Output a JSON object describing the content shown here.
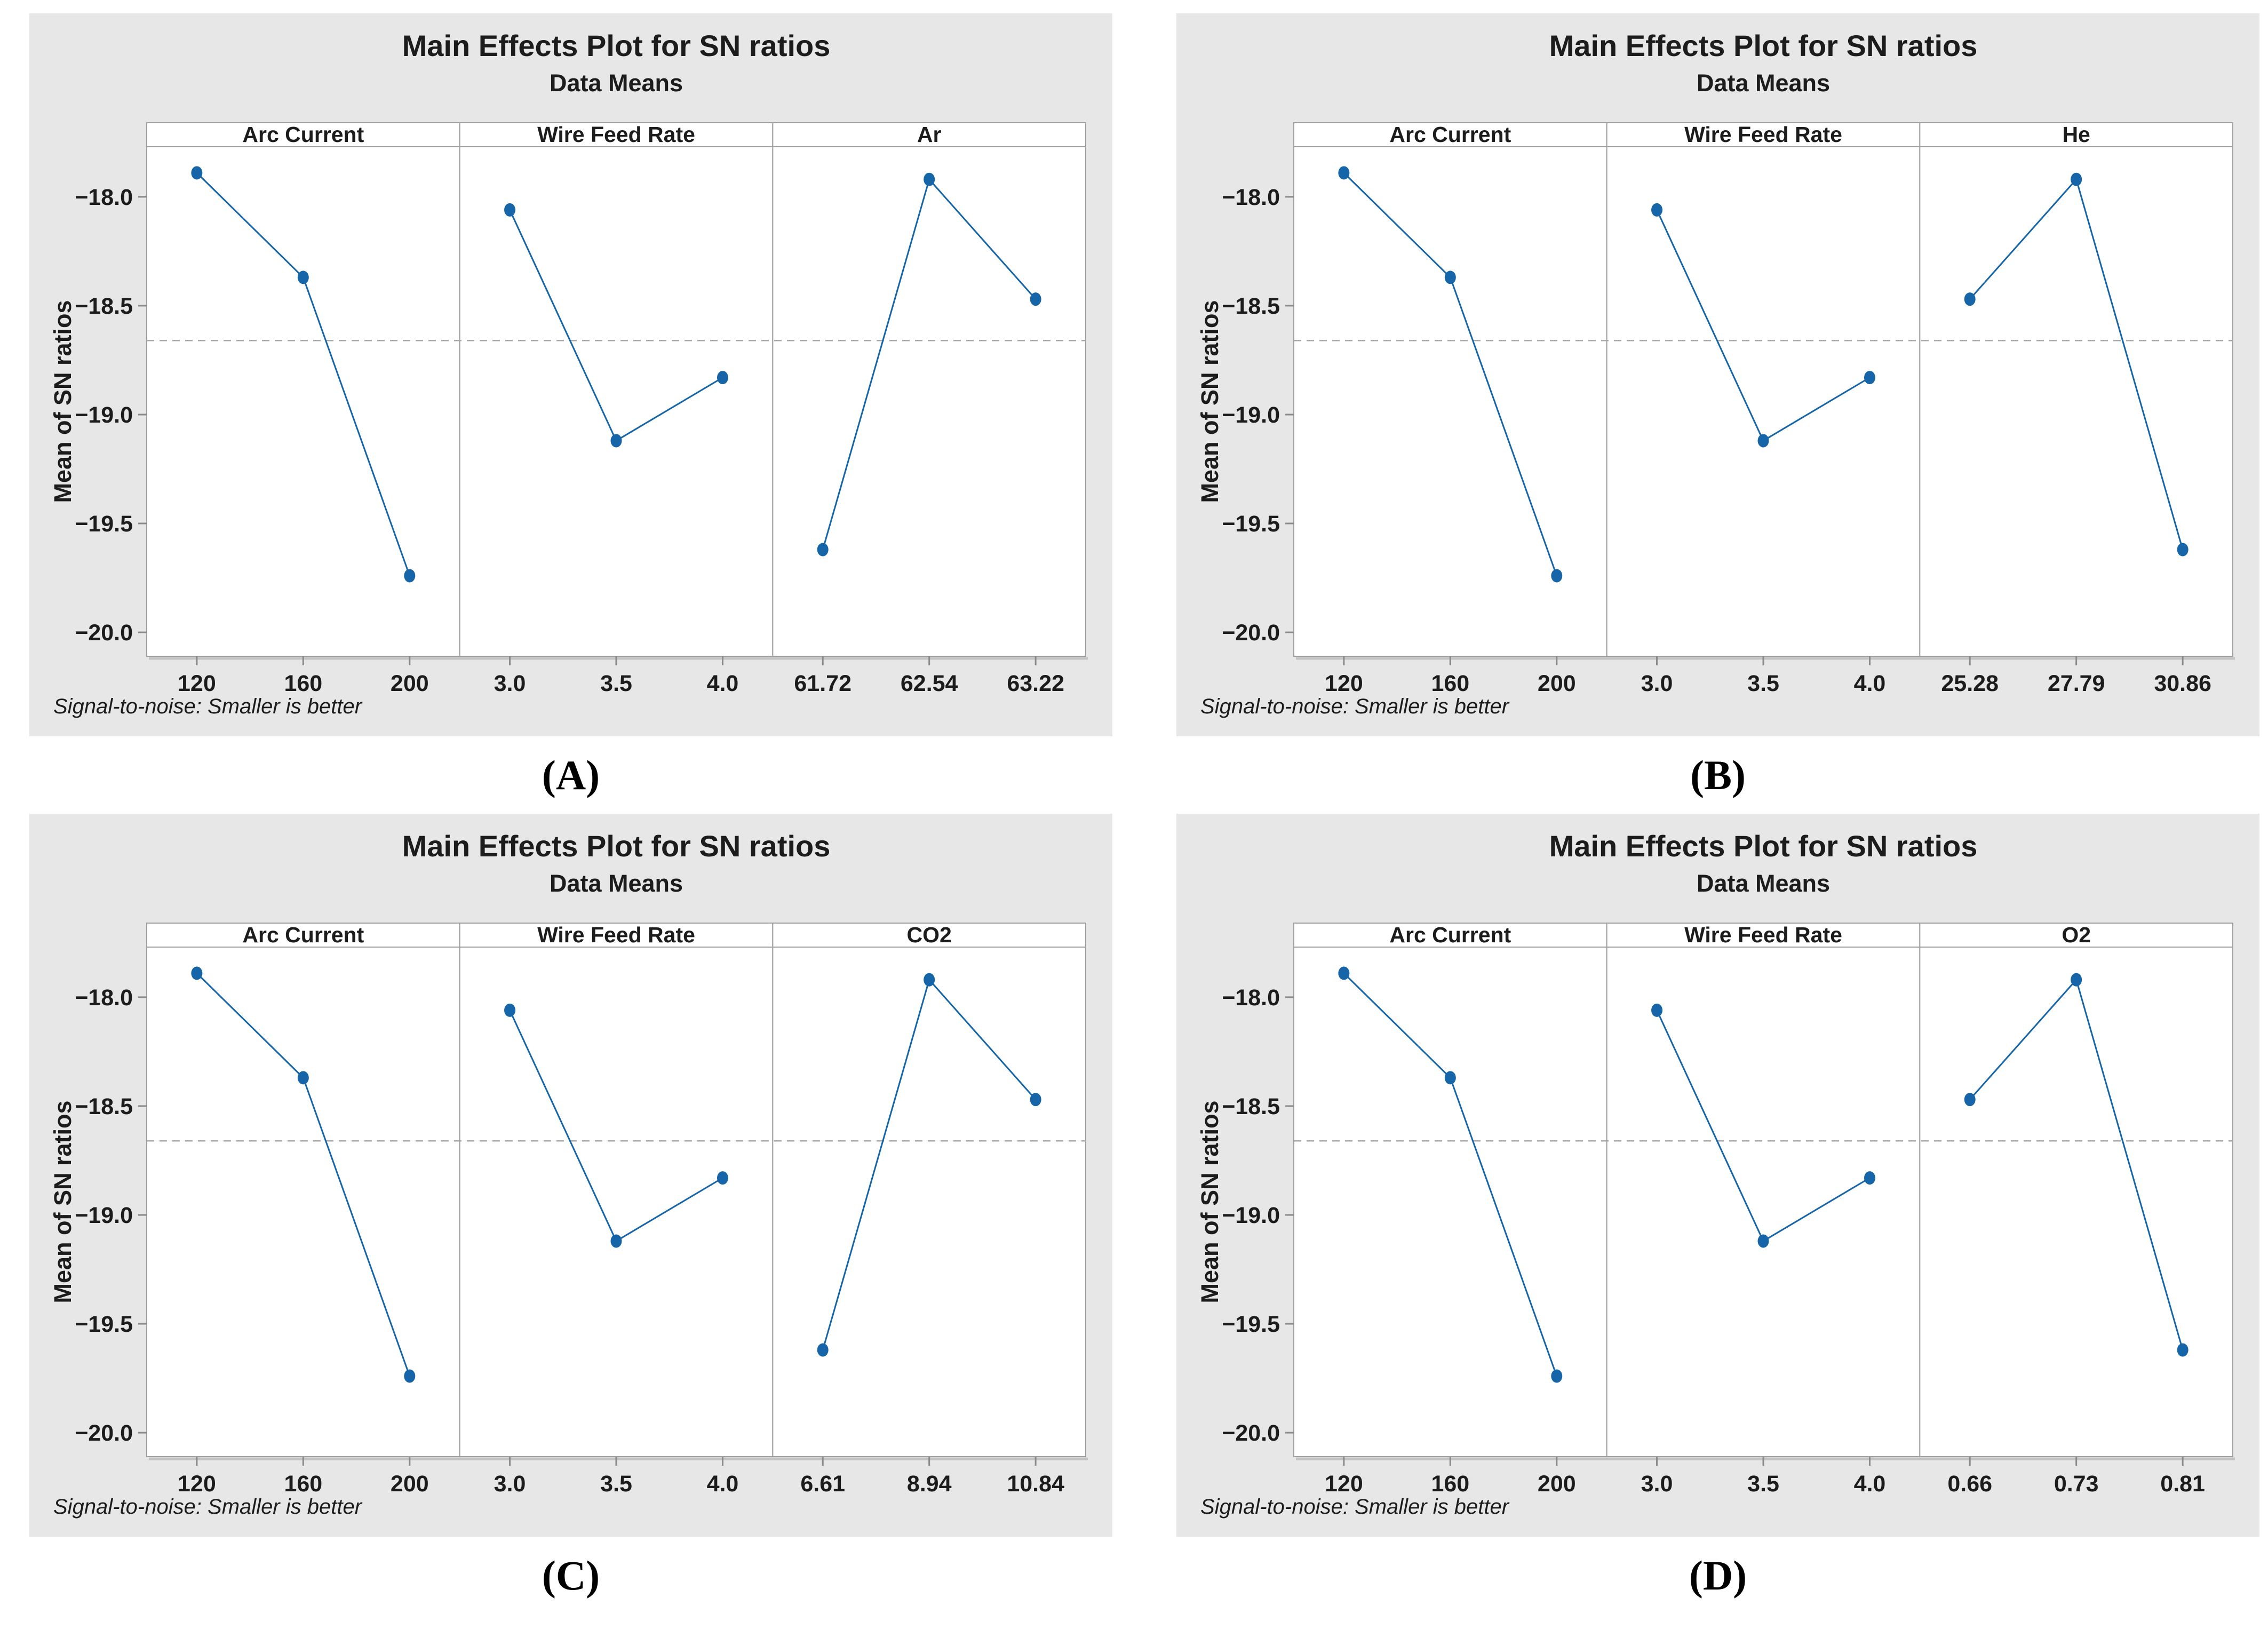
{
  "figure": {
    "description": "Four Minitab main-effects plots for SN ratios, arranged in a 2x2 grid with captions",
    "background_color": "#ffffff"
  },
  "style": {
    "card_background": "#e7e7e7",
    "panel_background": "#ffffff",
    "panel_border": "#a0a0a0",
    "axis_tick_color": "#8a8a8a",
    "shadow_color": "#c4c4c4",
    "text_color": "#1c1c1c",
    "series_color": "#1565a8",
    "reference_line_color": "#a9a9a9"
  },
  "chart_data": [
    {
      "id": "A",
      "type": "line",
      "caption": "(A)",
      "title": "Main Effects Plot for SN ratios",
      "subtitle": "Data Means",
      "ylabel": "Mean of SN ratios",
      "footnote": "Signal-to-noise: Smaller is better",
      "legend": "none",
      "grid": false,
      "ylim": [
        -20.11,
        -17.77
      ],
      "ytick_values": [
        -18.0,
        -18.5,
        -19.0,
        -19.5,
        -20.0
      ],
      "ytick_labels": [
        "−18.0",
        "−18.5",
        "−19.0",
        "−19.5",
        "−20.0"
      ],
      "reference_line_value": -18.66,
      "panels": [
        {
          "factor": "Arc Current",
          "levels": [
            "120",
            "160",
            "200"
          ],
          "means": [
            -17.89,
            -18.37,
            -19.74
          ]
        },
        {
          "factor": "Wire Feed Rate",
          "levels": [
            "3.0",
            "3.5",
            "4.0"
          ],
          "means": [
            -18.06,
            -19.12,
            -18.83
          ]
        },
        {
          "factor": "Ar",
          "levels": [
            "61.72",
            "62.54",
            "63.22"
          ],
          "means": [
            -19.62,
            -17.92,
            -18.47
          ]
        }
      ]
    },
    {
      "id": "B",
      "type": "line",
      "caption": "(B)",
      "title": "Main Effects Plot for SN ratios",
      "subtitle": "Data Means",
      "ylabel": "Mean of SN ratios",
      "footnote": "Signal-to-noise: Smaller is better",
      "legend": "none",
      "grid": false,
      "ylim": [
        -20.11,
        -17.77
      ],
      "ytick_values": [
        -18.0,
        -18.5,
        -19.0,
        -19.5,
        -20.0
      ],
      "ytick_labels": [
        "−18.0",
        "−18.5",
        "−19.0",
        "−19.5",
        "−20.0"
      ],
      "reference_line_value": -18.66,
      "panels": [
        {
          "factor": "Arc Current",
          "levels": [
            "120",
            "160",
            "200"
          ],
          "means": [
            -17.89,
            -18.37,
            -19.74
          ]
        },
        {
          "factor": "Wire Feed Rate",
          "levels": [
            "3.0",
            "3.5",
            "4.0"
          ],
          "means": [
            -18.06,
            -19.12,
            -18.83
          ]
        },
        {
          "factor": "He",
          "levels": [
            "25.28",
            "27.79",
            "30.86"
          ],
          "means": [
            -18.47,
            -17.92,
            -19.62
          ]
        }
      ]
    },
    {
      "id": "C",
      "type": "line",
      "caption": "(C)",
      "title": "Main Effects Plot for SN ratios",
      "subtitle": "Data Means",
      "ylabel": "Mean of SN ratios",
      "footnote": "Signal-to-noise: Smaller is better",
      "legend": "none",
      "grid": false,
      "ylim": [
        -20.11,
        -17.77
      ],
      "ytick_values": [
        -18.0,
        -18.5,
        -19.0,
        -19.5,
        -20.0
      ],
      "ytick_labels": [
        "−18.0",
        "−18.5",
        "−19.0",
        "−19.5",
        "−20.0"
      ],
      "reference_line_value": -18.66,
      "panels": [
        {
          "factor": "Arc Current",
          "levels": [
            "120",
            "160",
            "200"
          ],
          "means": [
            -17.89,
            -18.37,
            -19.74
          ]
        },
        {
          "factor": "Wire Feed Rate",
          "levels": [
            "3.0",
            "3.5",
            "4.0"
          ],
          "means": [
            -18.06,
            -19.12,
            -18.83
          ]
        },
        {
          "factor": "CO2",
          "levels": [
            "6.61",
            "8.94",
            "10.84"
          ],
          "means": [
            -19.62,
            -17.92,
            -18.47
          ]
        }
      ]
    },
    {
      "id": "D",
      "type": "line",
      "caption": "(D)",
      "title": "Main Effects Plot for SN ratios",
      "subtitle": "Data Means",
      "ylabel": "Mean of SN ratios",
      "footnote": "Signal-to-noise: Smaller is better",
      "legend": "none",
      "grid": false,
      "ylim": [
        -20.11,
        -17.77
      ],
      "ytick_values": [
        -18.0,
        -18.5,
        -19.0,
        -19.5,
        -20.0
      ],
      "ytick_labels": [
        "−18.0",
        "−18.5",
        "−19.0",
        "−19.5",
        "−20.0"
      ],
      "reference_line_value": -18.66,
      "panels": [
        {
          "factor": "Arc Current",
          "levels": [
            "120",
            "160",
            "200"
          ],
          "means": [
            -17.89,
            -18.37,
            -19.74
          ]
        },
        {
          "factor": "Wire Feed Rate",
          "levels": [
            "3.0",
            "3.5",
            "4.0"
          ],
          "means": [
            -18.06,
            -19.12,
            -18.83
          ]
        },
        {
          "factor": "O2",
          "levels": [
            "0.66",
            "0.73",
            "0.81"
          ],
          "means": [
            -18.47,
            -17.92,
            -19.62
          ]
        }
      ]
    }
  ]
}
